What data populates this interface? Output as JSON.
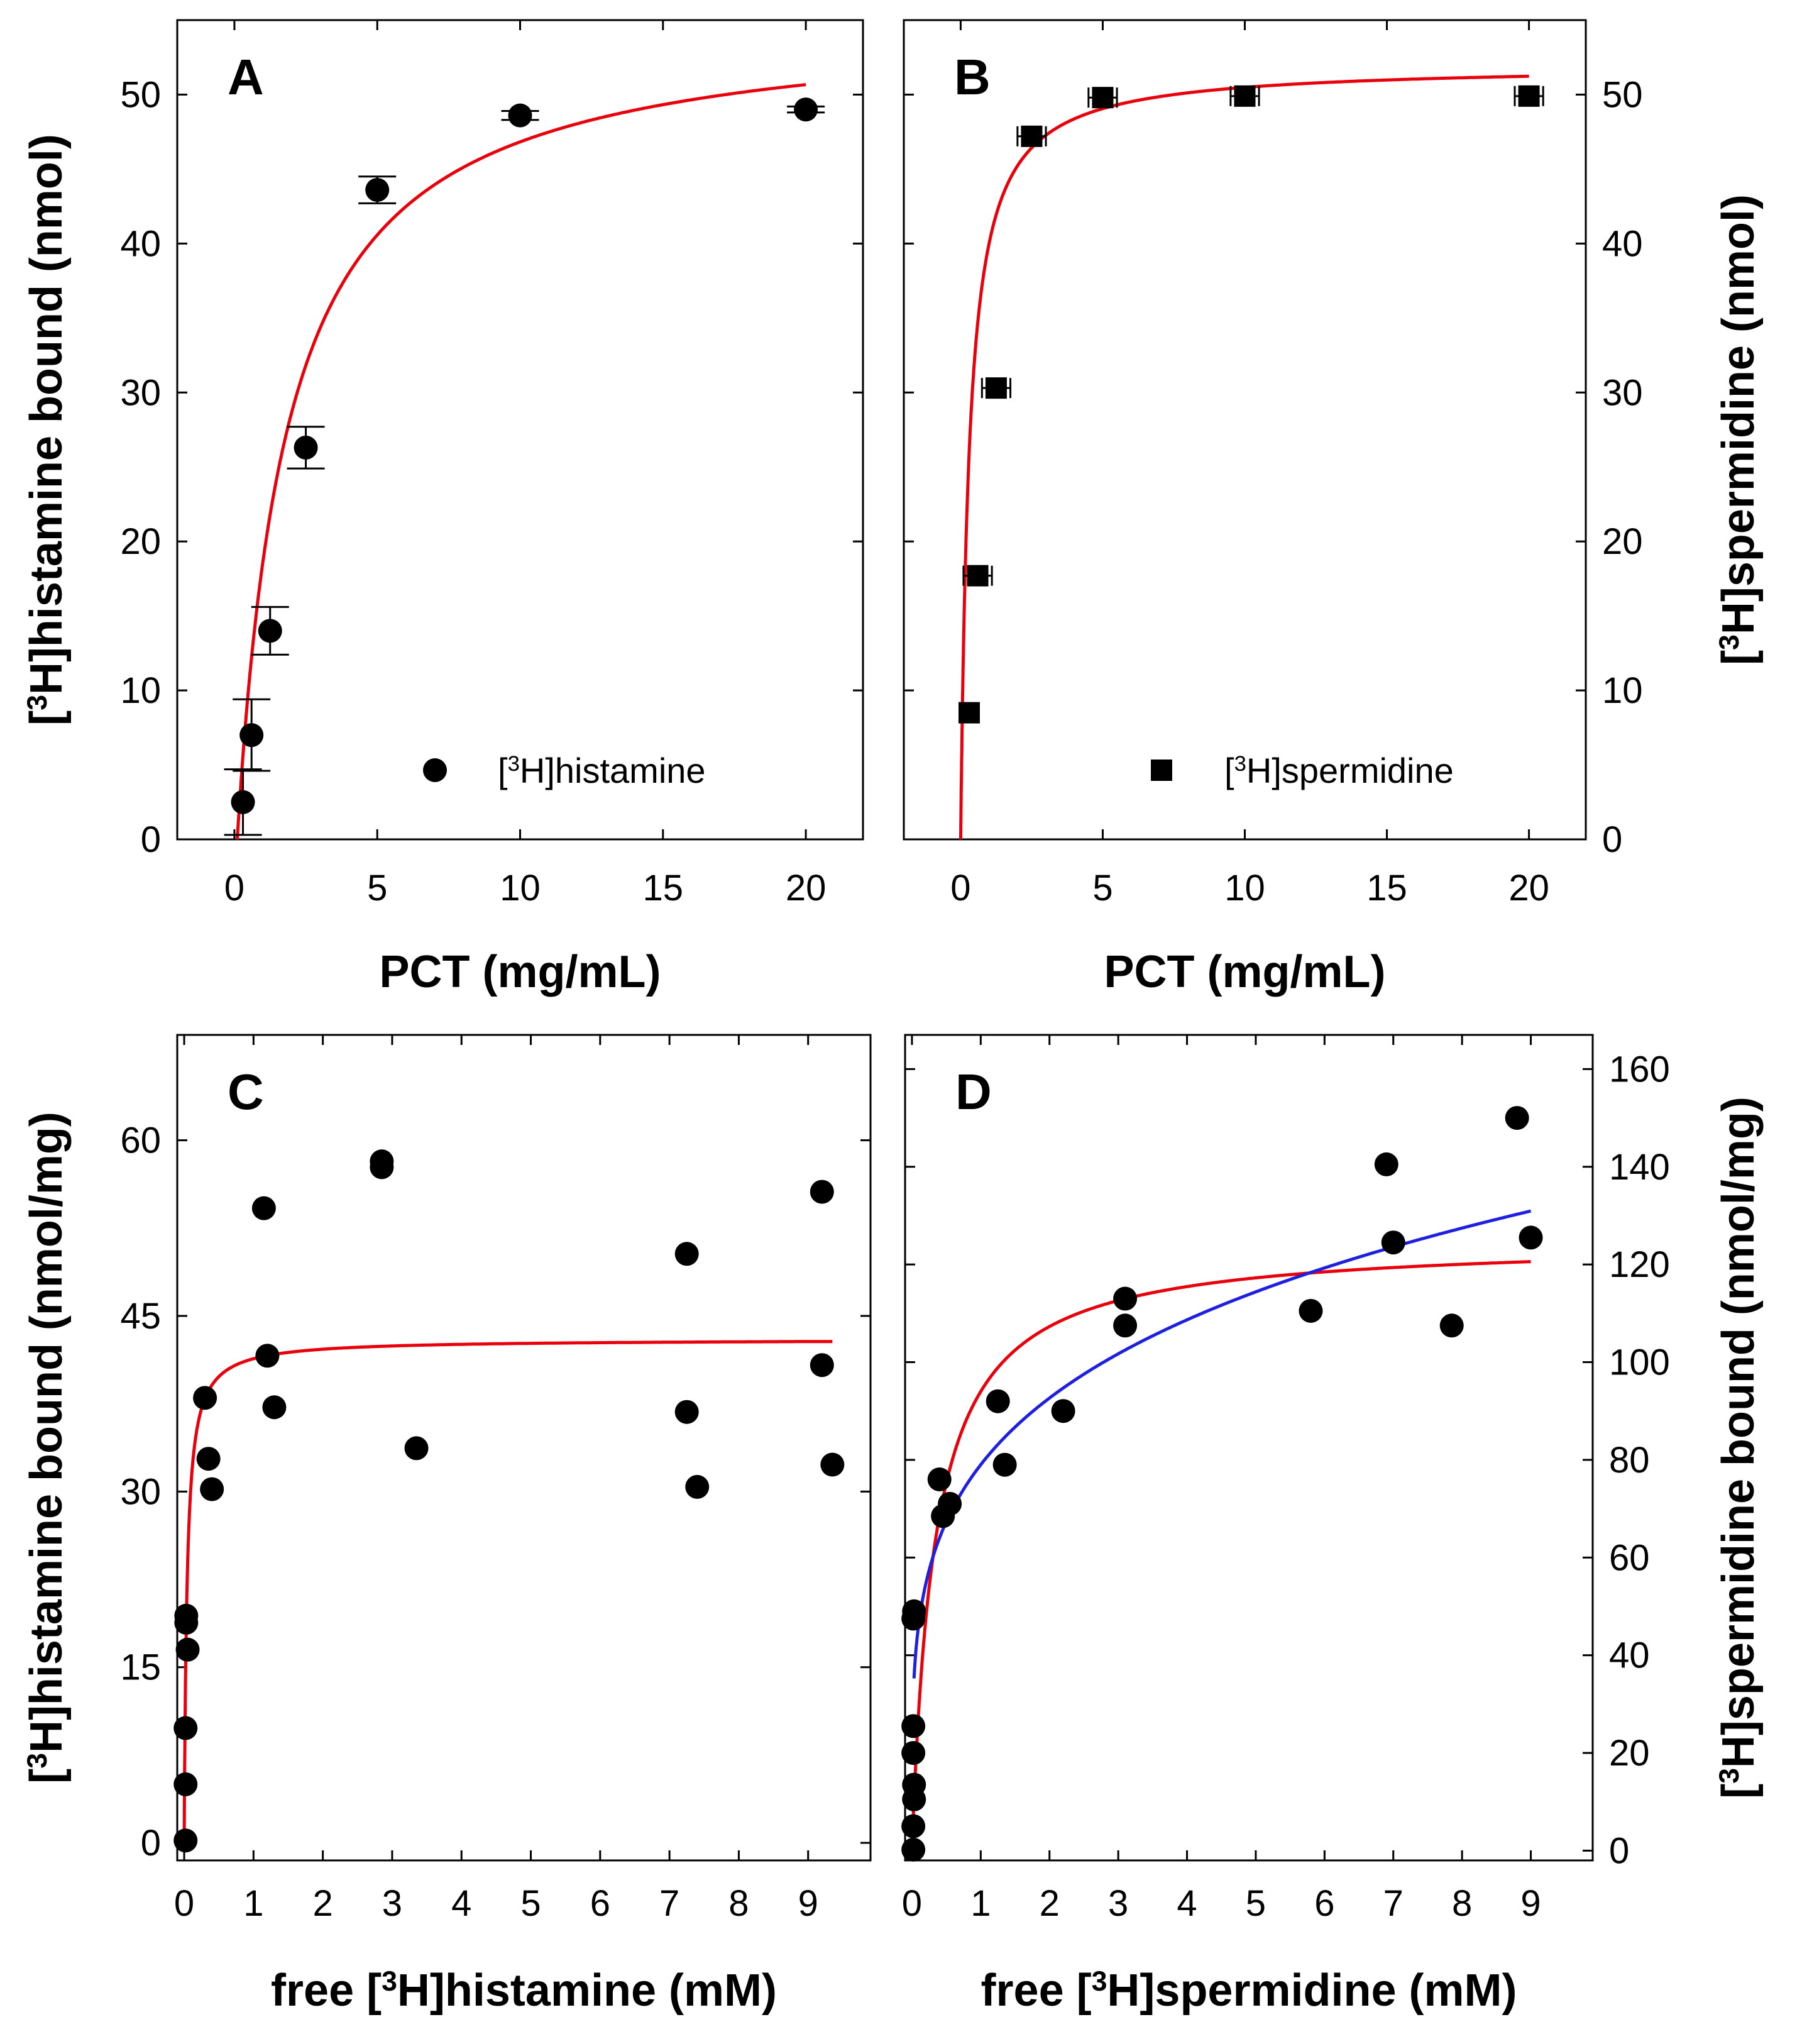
{
  "chart_data": [
    {
      "panel": "A",
      "type": "scatter",
      "xlabel": "PCT (mg/mL)",
      "ylabel": {
        "pre": "[",
        "sup": "3",
        "post": "H]histamine bound (nmol)"
      },
      "xlim": [
        -2,
        22
      ],
      "ylim": [
        0,
        55
      ],
      "xticks": [
        0,
        5,
        10,
        15,
        20
      ],
      "yticks": [
        0,
        10,
        20,
        30,
        40,
        50
      ],
      "yaxis_side": "left",
      "legend": {
        "pre": "[",
        "sup": "3",
        "post": "H]histamine",
        "marker": "circle"
      },
      "series": [
        {
          "name": "[3H]histamine",
          "marker": "circle",
          "x": [
            0.3,
            0.6,
            1.25,
            2.5,
            5,
            10,
            20
          ],
          "y": [
            2.5,
            7.0,
            14.0,
            26.3,
            43.6,
            48.6,
            49.0
          ],
          "yerr": [
            2.2,
            2.4,
            1.6,
            1.4,
            0.9,
            0.3,
            0.2
          ]
        }
      ],
      "fits": [
        {
          "name": "fit",
          "color": "#e8000b",
          "model": "hyperbolic",
          "Bmax": 55.15,
          "K": 1.76,
          "x0": 0.1,
          "xrange": [
            0.1,
            20
          ]
        }
      ]
    },
    {
      "panel": "B",
      "type": "scatter",
      "xlabel": "PCT (mg/mL)",
      "ylabel": {
        "pre": "[",
        "sup": "3",
        "post": "H]spermidine (nmol)"
      },
      "xlim": [
        -2,
        22
      ],
      "ylim": [
        0,
        55
      ],
      "xticks": [
        0,
        5,
        10,
        15,
        20
      ],
      "yticks": [
        0,
        10,
        20,
        30,
        40,
        50
      ],
      "yaxis_side": "right",
      "legend": {
        "pre": "[",
        "sup": "3",
        "post": "H]spermidine",
        "marker": "square"
      },
      "series": [
        {
          "name": "[3H]spermidine",
          "marker": "square",
          "x": [
            0.3,
            0.6,
            1.25,
            2.5,
            5,
            10,
            20
          ],
          "y": [
            8.5,
            17.7,
            30.3,
            47.2,
            49.8,
            49.9,
            49.9
          ],
          "xerr": [
            0.3,
            0.5,
            0.5,
            0.5,
            0.5,
            0.5,
            0.5
          ]
        }
      ],
      "fits": [
        {
          "name": "fit",
          "color": "#e8000b",
          "model": "hyperbolic",
          "Bmax": 52.0,
          "K": 0.3,
          "x0": 0.0,
          "xrange": [
            0.0,
            20
          ]
        }
      ]
    },
    {
      "panel": "C",
      "type": "scatter",
      "xlabel": {
        "pre": "free [",
        "sup": "3",
        "post": "H]histamine (mM)"
      },
      "ylabel": {
        "pre": "[",
        "sup": "3",
        "post": "H]histamine bound (nmol/mg)"
      },
      "xlim": [
        -0.1,
        9.9
      ],
      "ylim": [
        -1.5,
        69
      ],
      "xticks": [
        0,
        1,
        2,
        3,
        4,
        5,
        6,
        7,
        8,
        9
      ],
      "yticks": [
        0,
        15,
        30,
        45,
        60
      ],
      "yaxis_side": "left",
      "series": [
        {
          "name": "data",
          "marker": "circle",
          "x": [
            0.02,
            0.02,
            0.02,
            0.03,
            0.03,
            0.05,
            0.3,
            0.35,
            0.4,
            1.15,
            1.2,
            1.3,
            2.85,
            2.85,
            3.35,
            7.25,
            7.25,
            7.4,
            9.2,
            9.2,
            9.35
          ],
          "y": [
            0.2,
            5.0,
            9.8,
            18.8,
            19.4,
            16.5,
            38.0,
            32.8,
            30.2,
            54.2,
            41.6,
            37.2,
            57.7,
            58.2,
            33.7,
            50.3,
            36.8,
            30.4,
            55.6,
            40.8,
            32.3
          ]
        }
      ],
      "fits": [
        {
          "name": "fit",
          "color": "#e8000b",
          "model": "hyperbolic",
          "Bmax": 43.0,
          "K": 0.04,
          "x0": 0.0,
          "xrange": [
            0.0,
            9.35
          ]
        }
      ]
    },
    {
      "panel": "D",
      "type": "scatter",
      "xlabel": {
        "pre": "free [",
        "sup": "3",
        "post": "H]spermidine (mM)"
      },
      "ylabel": {
        "pre": "[",
        "sup": "3",
        "post": "H]spermidine bound (nmol/mg)"
      },
      "xlim": [
        -0.1,
        9.9
      ],
      "ylim": [
        -2,
        167
      ],
      "xticks": [
        0,
        1,
        2,
        3,
        4,
        5,
        6,
        7,
        8,
        9
      ],
      "yticks": [
        0,
        20,
        40,
        60,
        80,
        100,
        120,
        140,
        160
      ],
      "yaxis_side": "right",
      "series": [
        {
          "name": "data",
          "marker": "circle",
          "x": [
            0.02,
            0.02,
            0.03,
            0.03,
            0.02,
            0.02,
            0.02,
            0.03,
            0.4,
            0.45,
            0.55,
            1.25,
            1.35,
            2.2,
            3.1,
            3.1,
            5.8,
            6.9,
            7.0,
            7.85,
            8.8,
            9.0
          ],
          "y": [
            0.2,
            5.0,
            10.5,
            13.5,
            20.0,
            25.5,
            47.5,
            49.0,
            76.0,
            68.5,
            71.0,
            92.0,
            79.0,
            90.0,
            113.0,
            107.5,
            110.5,
            140.5,
            124.5,
            107.5,
            150.0,
            125.5
          ],
          "note": "right-axis scale"
        }
      ],
      "fits": [
        {
          "name": "red fit",
          "color": "#e8000b",
          "model": "hyperbolic",
          "Bmax": 125.0,
          "K": 0.33,
          "x0": 0.0,
          "xrange": [
            0.0,
            9.0
          ]
        },
        {
          "name": "blue fit",
          "color": "#1f1fe0",
          "model": "freundlich",
          "a": 79.0,
          "n": 0.23,
          "xrange": [
            0.03,
            9.0
          ]
        }
      ]
    }
  ]
}
